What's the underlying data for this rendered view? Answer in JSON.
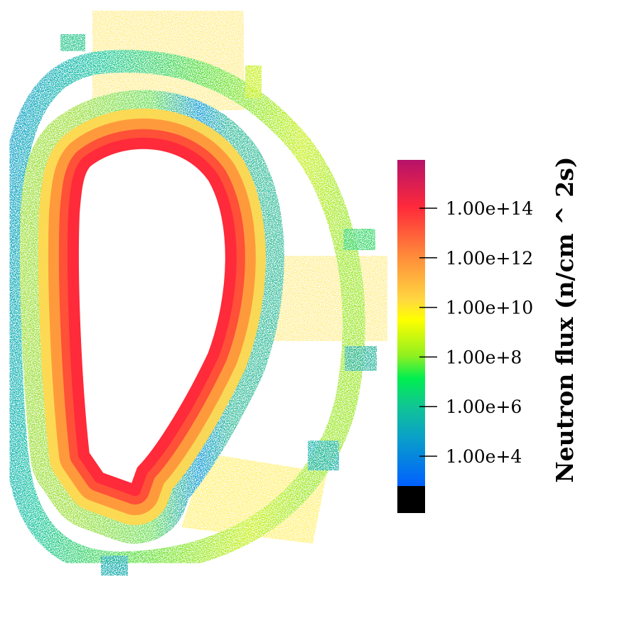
{
  "chart_data": {
    "type": "heatmap",
    "description_kind": "point-cloud field colored on a log scale",
    "colorbar": {
      "title": "Neutron flux (n/cm ^ 2s)",
      "scale": "log",
      "ticks": [
        {
          "value": 100000000000000.0,
          "label": "1.00e+14"
        },
        {
          "value": 1000000000000.0,
          "label": "1.00e+12"
        },
        {
          "value": 10000000000.0,
          "label": "1.00e+10"
        },
        {
          "value": 100000000.0,
          "label": "1.00e+8"
        },
        {
          "value": 1000000.0,
          "label": "1.00e+6"
        },
        {
          "value": 10000.0,
          "label": "1.00e+4"
        }
      ],
      "below_range_color": "#000000",
      "colormap": [
        "#0060ff",
        "#1090d8",
        "#08b8b0",
        "#10d080",
        "#00ee50",
        "#80f020",
        "#ffff00",
        "#ffd040",
        "#ff9a3c",
        "#ff6a38",
        "#ff2a3a",
        "#e0105a",
        "#b5126a"
      ]
    },
    "regions": {
      "plasma_facing_blanket": "#ff2a3a",
      "blanket_outer": "#ffc040",
      "inner_shield": "#20a8c8",
      "vacuum_vessel": "#70e040",
      "ports": "#fff080"
    }
  }
}
